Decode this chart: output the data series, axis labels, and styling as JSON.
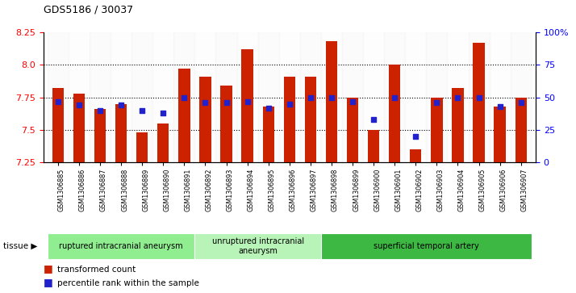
{
  "title": "GDS5186 / 30037",
  "samples": [
    "GSM1306885",
    "GSM1306886",
    "GSM1306887",
    "GSM1306888",
    "GSM1306889",
    "GSM1306890",
    "GSM1306891",
    "GSM1306892",
    "GSM1306893",
    "GSM1306894",
    "GSM1306895",
    "GSM1306896",
    "GSM1306897",
    "GSM1306898",
    "GSM1306899",
    "GSM1306900",
    "GSM1306901",
    "GSM1306902",
    "GSM1306903",
    "GSM1306904",
    "GSM1306905",
    "GSM1306906",
    "GSM1306907"
  ],
  "red_values": [
    7.82,
    7.78,
    7.66,
    7.7,
    7.48,
    7.55,
    7.97,
    7.91,
    7.84,
    8.12,
    7.68,
    7.91,
    7.91,
    8.18,
    7.75,
    7.5,
    8.0,
    7.35,
    7.75,
    7.82,
    8.17,
    7.68,
    7.75
  ],
  "blue_values": [
    47,
    44,
    40,
    44,
    40,
    38,
    50,
    46,
    46,
    47,
    42,
    45,
    50,
    50,
    47,
    33,
    50,
    20,
    46,
    50,
    50,
    43,
    46
  ],
  "groups": [
    {
      "label": "ruptured intracranial aneurysm",
      "start": 0,
      "end": 7,
      "color": "#90EE90"
    },
    {
      "label": "unruptured intracranial\naneurysm",
      "start": 7,
      "end": 13,
      "color": "#b8f4b8"
    },
    {
      "label": "superficial temporal artery",
      "start": 13,
      "end": 23,
      "color": "#3cb843"
    }
  ],
  "ylim_left": [
    7.25,
    8.25
  ],
  "ylim_right": [
    0,
    100
  ],
  "yticks_left": [
    7.25,
    7.5,
    7.75,
    8.0,
    8.25
  ],
  "yticks_right": [
    0,
    25,
    50,
    75,
    100
  ],
  "grid_values": [
    7.5,
    7.75,
    8.0
  ],
  "bar_color": "#cc2200",
  "dot_color": "#2222cc",
  "bar_bottom": 7.25,
  "legend_items": [
    "transformed count",
    "percentile rank within the sample"
  ],
  "bg_color": "#f0f0f0"
}
